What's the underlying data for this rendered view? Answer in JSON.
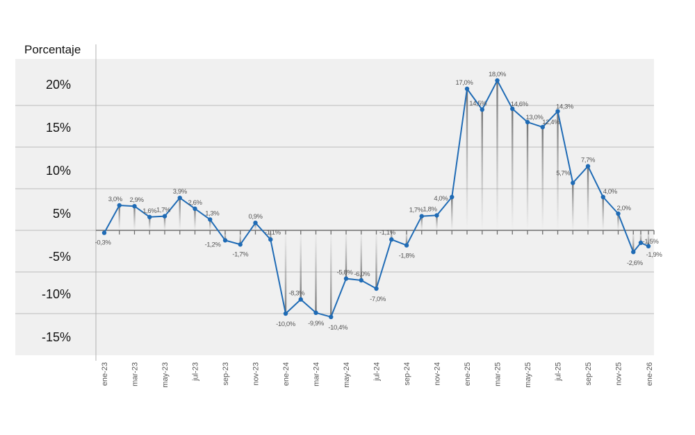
{
  "chart_data": {
    "type": "line",
    "title": "",
    "ylabel": "Porcentaje",
    "xlabel": "",
    "ylim": [
      -15,
      20
    ],
    "grid": true,
    "legend": null,
    "y_ticks": [
      "20%",
      "15%",
      "10%",
      "5%",
      "-5%",
      "-10%",
      "-15%"
    ],
    "x_tick_labels": [
      "ene-23",
      "mar-23",
      "may-23",
      "jul-23",
      "sep-23",
      "nov-23",
      "ene-24",
      "mar-24",
      "may-24",
      "jul-24",
      "sep-24",
      "nov-24",
      "ene-25",
      "mar-25",
      "may-25",
      "jul-25",
      "sep-25",
      "nov-25",
      "ene-26"
    ],
    "series": [
      {
        "name": "Porcentaje",
        "color": "#1f6bb5",
        "points": [
          {
            "x": "ene-23",
            "y": -0.3,
            "label": "-0,3%"
          },
          {
            "x": "feb-23",
            "y": 3.0,
            "label": "3,0%"
          },
          {
            "x": "mar-23",
            "y": 2.9,
            "label": "2,9%"
          },
          {
            "x": "abr-23",
            "y": 1.6,
            "label": "1,6%"
          },
          {
            "x": "may-23",
            "y": 1.7,
            "label": "1,7%"
          },
          {
            "x": "jun-23",
            "y": 3.9,
            "label": "3,9%"
          },
          {
            "x": "jul-23",
            "y": 2.6,
            "label": "2,6%"
          },
          {
            "x": "ago-23",
            "y": 1.3,
            "label": "1,3%"
          },
          {
            "x": "sep-23",
            "y": -1.2,
            "label": "-1,2%"
          },
          {
            "x": "oct-23",
            "y": -1.7,
            "label": "-1,7%"
          },
          {
            "x": "nov-23",
            "y": 0.9,
            "label": "0,9%"
          },
          {
            "x": "dic-23",
            "y": -1.1,
            "label": "-1,1%"
          },
          {
            "x": "ene-24",
            "y": -10.0,
            "label": "-10,0%"
          },
          {
            "x": "feb-24",
            "y": -8.3,
            "label": "-8,3%"
          },
          {
            "x": "mar-24",
            "y": -9.9,
            "label": "-9,9%"
          },
          {
            "x": "abr-24",
            "y": -10.4,
            "label": "-10,4%"
          },
          {
            "x": "may-24",
            "y": -5.8,
            "label": "-5,8%"
          },
          {
            "x": "jun-24",
            "y": -6.0,
            "label": "-6,0%"
          },
          {
            "x": "jul-24",
            "y": -7.0,
            "label": "-7,0%"
          },
          {
            "x": "ago-24",
            "y": -1.1,
            "label": "-1,1%"
          },
          {
            "x": "sep-24",
            "y": -1.8,
            "label": "-1,8%"
          },
          {
            "x": "oct-24",
            "y": 1.7,
            "label": "1,7%"
          },
          {
            "x": "nov-24",
            "y": 1.8,
            "label": "1,8%"
          },
          {
            "x": "dic-24",
            "y": 4.0,
            "label": "4,0%"
          },
          {
            "x": "ene-25",
            "y": 17.0,
            "label": "17,0%"
          },
          {
            "x": "feb-25",
            "y": 14.5,
            "label": "14,5%"
          },
          {
            "x": "mar-25",
            "y": 18.0,
            "label": "18,0%"
          },
          {
            "x": "abr-25",
            "y": 14.6,
            "label": "14,6%"
          },
          {
            "x": "may-25",
            "y": 13.0,
            "label": "13,0%"
          },
          {
            "x": "jun-25",
            "y": 12.4,
            "label": "12,4%"
          },
          {
            "x": "jul-25",
            "y": 14.3,
            "label": "14,3%"
          },
          {
            "x": "ago-25",
            "y": 5.7,
            "label": "5,7%"
          },
          {
            "x": "sep-25",
            "y": 7.7,
            "label": "7,7%"
          },
          {
            "x": "oct-25",
            "y": 4.0,
            "label": "4,0%"
          },
          {
            "x": "nov-25",
            "y": 2.0,
            "label": "2,0%"
          },
          {
            "x": "dic-25",
            "y": -2.6,
            "label": "-2,6%"
          },
          {
            "x": "dic-25b",
            "y": -1.5,
            "label": "-1,5%"
          },
          {
            "x": "ene-26",
            "y": -1.9,
            "label": "-1,9%"
          }
        ]
      }
    ]
  },
  "style": {
    "line_color": "#1f6bb5",
    "plot_bg": "#f0f0f0",
    "grid_color": "#b8b8b8",
    "label_color": "#555555"
  }
}
